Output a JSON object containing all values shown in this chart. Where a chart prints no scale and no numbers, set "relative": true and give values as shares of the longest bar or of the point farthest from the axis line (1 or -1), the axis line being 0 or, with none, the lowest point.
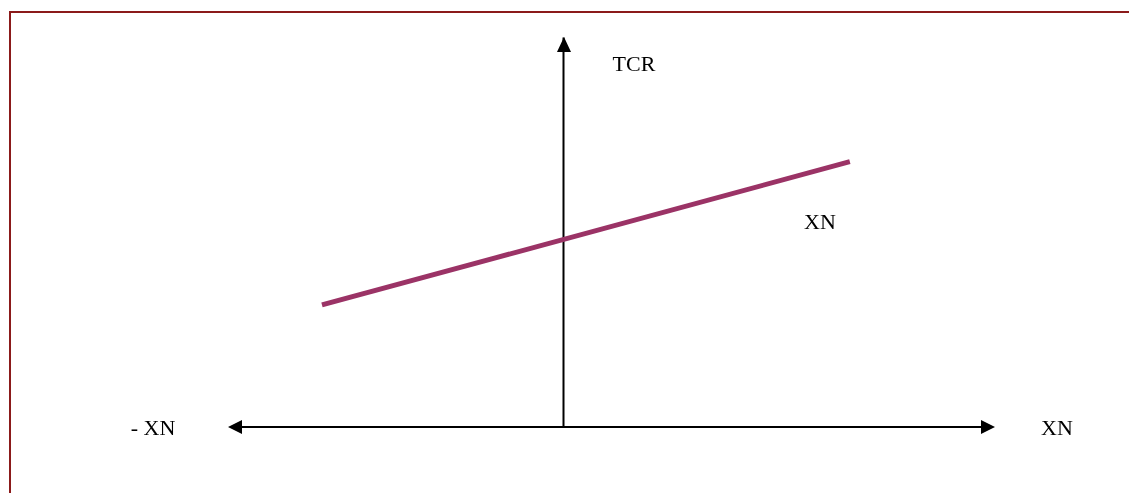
{
  "chart_data": {
    "type": "line",
    "xlabel": "XN",
    "ylabel": "TCR",
    "annotations": [
      "- XN"
    ],
    "relative": true,
    "line_style": "solid",
    "categories": [
      null,
      null
    ],
    "series": [
      {
        "name": "XN",
        "color": "#9b3366",
        "values": [
          0.46,
          1
        ]
      }
    ]
  }
}
